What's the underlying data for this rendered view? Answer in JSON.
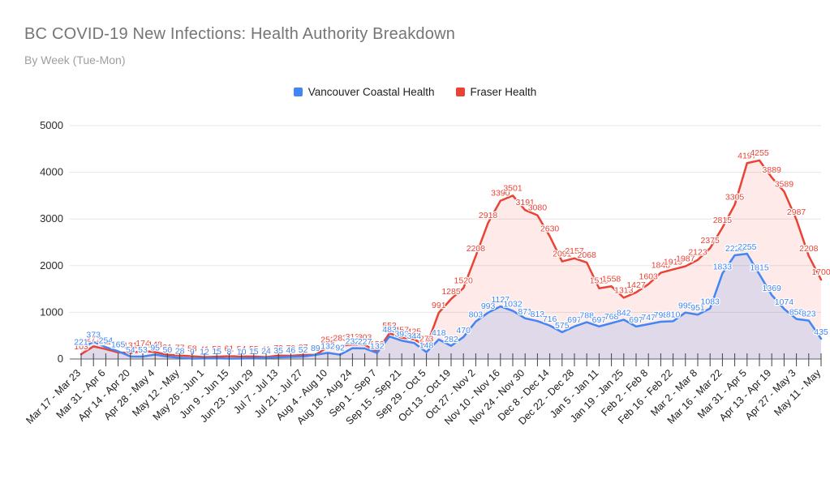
{
  "header": {
    "title": "BC COVID-19 New Infections: Health Authority Breakdown",
    "subtitle": "By Week (Tue-Mon)"
  },
  "chart_data": {
    "type": "area",
    "title": "BC COVID-19 New Infections: Health Authority Breakdown",
    "subtitle": "By Week (Tue-Mon)",
    "legend_position": "top-center",
    "grid": true,
    "ylim": [
      0,
      5000
    ],
    "y_tick_labels": [
      "0",
      "1000",
      "2000",
      "3000",
      "4000",
      "5000"
    ],
    "y_ticks": [
      0,
      1000,
      2000,
      3000,
      4000,
      5000
    ],
    "x_tick_every": 2,
    "x_tick_labels": [
      "Mar 17 - Mar 23",
      "Mar 31 - Apr 6",
      "Apr 14 - Apr 20",
      "Apr 28 - May 4",
      "May 12 - May",
      "May 26 - Jun 1",
      "Jun 9 - Jun 15",
      "Jun 23 - Jun 29",
      "Jul 7 - Jul 13",
      "Jul 21 - Jul 27",
      "Aug 4 - Aug 10",
      "Aug 18 - Aug 24",
      "Sep 1 - Sep 7",
      "Sep 15 - Sep 21",
      "Sep 29 - Oct 5",
      "Oct 13 - Oct 19",
      "Oct 27 - Nov 2",
      "Nov 10 - Nov 16",
      "Nov 24 - Nov 30",
      "Dec 8 - Dec 14",
      "Dec 22 - Dec 28",
      "Jan 5 - Jan 11",
      "Jan 19 - Jan 25",
      "Feb 2 - Feb 8",
      "Feb 16 - Feb 22",
      "Mar 2 - Mar 8",
      "Mar 16 - Mar 22",
      "Mar 31 - Apr 5",
      "Apr 13 - Apr 19",
      "Apr 27 - May 3",
      "May 11 - May"
    ],
    "series": [
      {
        "name": "Vancouver Coastal Health",
        "color": "#4285f4",
        "fill": "rgba(66,133,244,0.16)",
        "values": [
          221,
          373,
          254,
          165,
          54,
          53,
          95,
          50,
          28,
          9,
          12,
          15,
          8,
          10,
          15,
          24,
          35,
          46,
          52,
          89,
          132,
          92,
          232,
          227,
          132,
          483,
          393,
          344,
          148,
          418,
          282,
          470,
          803,
          993,
          1127,
          1032,
          871,
          813,
          716,
          575,
          697,
          788,
          697,
          768,
          842,
          697,
          747,
          798,
          810,
          995,
          951,
          1083,
          1833,
          2222,
          2255,
          1815,
          1369,
          1074,
          858,
          823,
          435
        ]
      },
      {
        "name": "Fraser Health",
        "color": "#ea4335",
        "fill": "rgba(234,67,53,0.11)",
        "values": [
          103,
          271,
          212,
          141,
          131,
          174,
          148,
          91,
          77,
          58,
          41,
          50,
          61,
          54,
          55,
          41,
          73,
          70,
          87,
          89,
          252,
          283,
          313,
          303,
          159,
          553,
          457,
          425,
          273,
          991,
          1285,
          1520,
          2208,
          2918,
          3390,
          3501,
          3191,
          3080,
          2630,
          2091,
          2157,
          2068,
          1515,
          1558,
          1313,
          1427,
          1603,
          1848,
          1919,
          1987,
          2123,
          2375,
          2815,
          3305,
          4197,
          4255,
          3889,
          3589,
          2987,
          2208,
          1700
        ]
      }
    ]
  }
}
